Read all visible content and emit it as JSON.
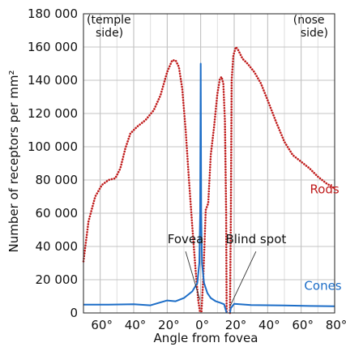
{
  "chart_data": {
    "type": "line",
    "xlabel": "Angle from fovea",
    "ylabel": "Number of receptors per mm²",
    "xlim": [
      -70,
      80
    ],
    "ylim": [
      0,
      180000
    ],
    "x_ticks": [
      -60,
      -40,
      -20,
      0,
      20,
      40,
      60,
      80
    ],
    "x_tick_labels": [
      "60°",
      "40°",
      "20°",
      "0°",
      "20°",
      "40°",
      "60°",
      "80°"
    ],
    "y_ticks": [
      0,
      20000,
      40000,
      60000,
      80000,
      100000,
      120000,
      140000,
      160000,
      180000
    ],
    "y_tick_labels": [
      "0",
      "20 000",
      "40 000",
      "60 000",
      "80 000",
      "100 000",
      "120 000",
      "140 000",
      "160 000",
      "180 000"
    ],
    "grid": true,
    "corner_labels": {
      "left": [
        "(temple",
        "side)"
      ],
      "right": [
        "(nose",
        "side)"
      ]
    },
    "series": [
      {
        "name": "Rods",
        "color": "#c01c1c",
        "style": "dotted",
        "segments": [
          [
            [
              -70,
              31000
            ],
            [
              -67,
              55000
            ],
            [
              -63,
              70000
            ],
            [
              -59,
              77000
            ],
            [
              -55,
              80000
            ],
            [
              -51,
              81000
            ],
            [
              -48,
              87000
            ],
            [
              -45,
              99000
            ],
            [
              -42,
              108000
            ],
            [
              -38,
              112000
            ],
            [
              -33,
              116000
            ],
            [
              -28,
              122000
            ],
            [
              -24,
              131000
            ],
            [
              -20,
              145000
            ],
            [
              -17,
              152000
            ],
            [
              -15,
              152000
            ],
            [
              -13,
              148000
            ],
            [
              -11,
              135000
            ],
            [
              -9,
              110000
            ],
            [
              -7,
              80000
            ],
            [
              -5,
              52000
            ],
            [
              -3,
              25000
            ],
            [
              -1.5,
              8000
            ],
            [
              -0.5,
              1000
            ]
          ],
          [
            [
              0.5,
              1000
            ],
            [
              1.5,
              20000
            ],
            [
              3,
              62000
            ],
            [
              4.5,
              66000
            ],
            [
              6,
              95000
            ],
            [
              8,
              112000
            ],
            [
              10,
              132000
            ],
            [
              11.5,
              141000
            ],
            [
              12.5,
              142000
            ],
            [
              13.5,
              138000
            ],
            [
              14.5,
              115000
            ],
            [
              15.2,
              60000
            ],
            [
              15.5,
              0
            ]
          ],
          [
            [
              17.5,
              0
            ],
            [
              18,
              60000
            ],
            [
              18.5,
              140000
            ],
            [
              19.5,
              155000
            ],
            [
              21,
              160000
            ],
            [
              22.5,
              158000
            ],
            [
              25,
              153000
            ],
            [
              28,
              150000
            ],
            [
              32,
              145000
            ],
            [
              36,
              138000
            ],
            [
              40,
              128000
            ],
            [
              45,
              115000
            ],
            [
              50,
              103000
            ],
            [
              55,
              95000
            ],
            [
              60,
              91000
            ],
            [
              65,
              87000
            ],
            [
              70,
              82000
            ],
            [
              75,
              78000
            ],
            [
              80,
              75000
            ]
          ]
        ]
      },
      {
        "name": "Cones",
        "color": "#1c6dc7",
        "style": "solid",
        "segments": [
          [
            [
              -70,
              5000
            ],
            [
              -55,
              5000
            ],
            [
              -40,
              5200
            ],
            [
              -30,
              4600
            ],
            [
              -20,
              7500
            ],
            [
              -15,
              7000
            ],
            [
              -10,
              9000
            ],
            [
              -5,
              13000
            ],
            [
              -2,
              18000
            ],
            [
              -0.8,
              30000
            ],
            [
              -0.3,
              60000
            ],
            [
              0,
              150000
            ],
            [
              0.3,
              60000
            ],
            [
              0.8,
              30000
            ],
            [
              2,
              18000
            ],
            [
              4,
              12000
            ],
            [
              6,
              9000
            ],
            [
              9,
              7000
            ],
            [
              12,
              6000
            ],
            [
              14,
              5200
            ],
            [
              15.5,
              0
            ]
          ],
          [
            [
              17.5,
              0
            ],
            [
              18,
              3000
            ],
            [
              20,
              5500
            ],
            [
              30,
              4800
            ],
            [
              50,
              4500
            ],
            [
              65,
              4200
            ],
            [
              80,
              4000
            ]
          ]
        ]
      }
    ],
    "series_labels": [
      {
        "text": "Rods",
        "x": 74,
        "y": 72000,
        "color": "#c01c1c"
      },
      {
        "text": "Cones",
        "x": 73,
        "y": 14000,
        "color": "#1c6dc7"
      }
    ],
    "annotations": [
      {
        "text": "Fovea",
        "x": -9,
        "y": 42000,
        "pointer": [
          [
            -9,
            37000
          ],
          [
            -0.5,
            8000
          ]
        ]
      },
      {
        "text": "Blind spot",
        "x": 33,
        "y": 42000,
        "pointer": [
          [
            33,
            37000
          ],
          [
            17.5,
            4000
          ]
        ]
      }
    ]
  }
}
